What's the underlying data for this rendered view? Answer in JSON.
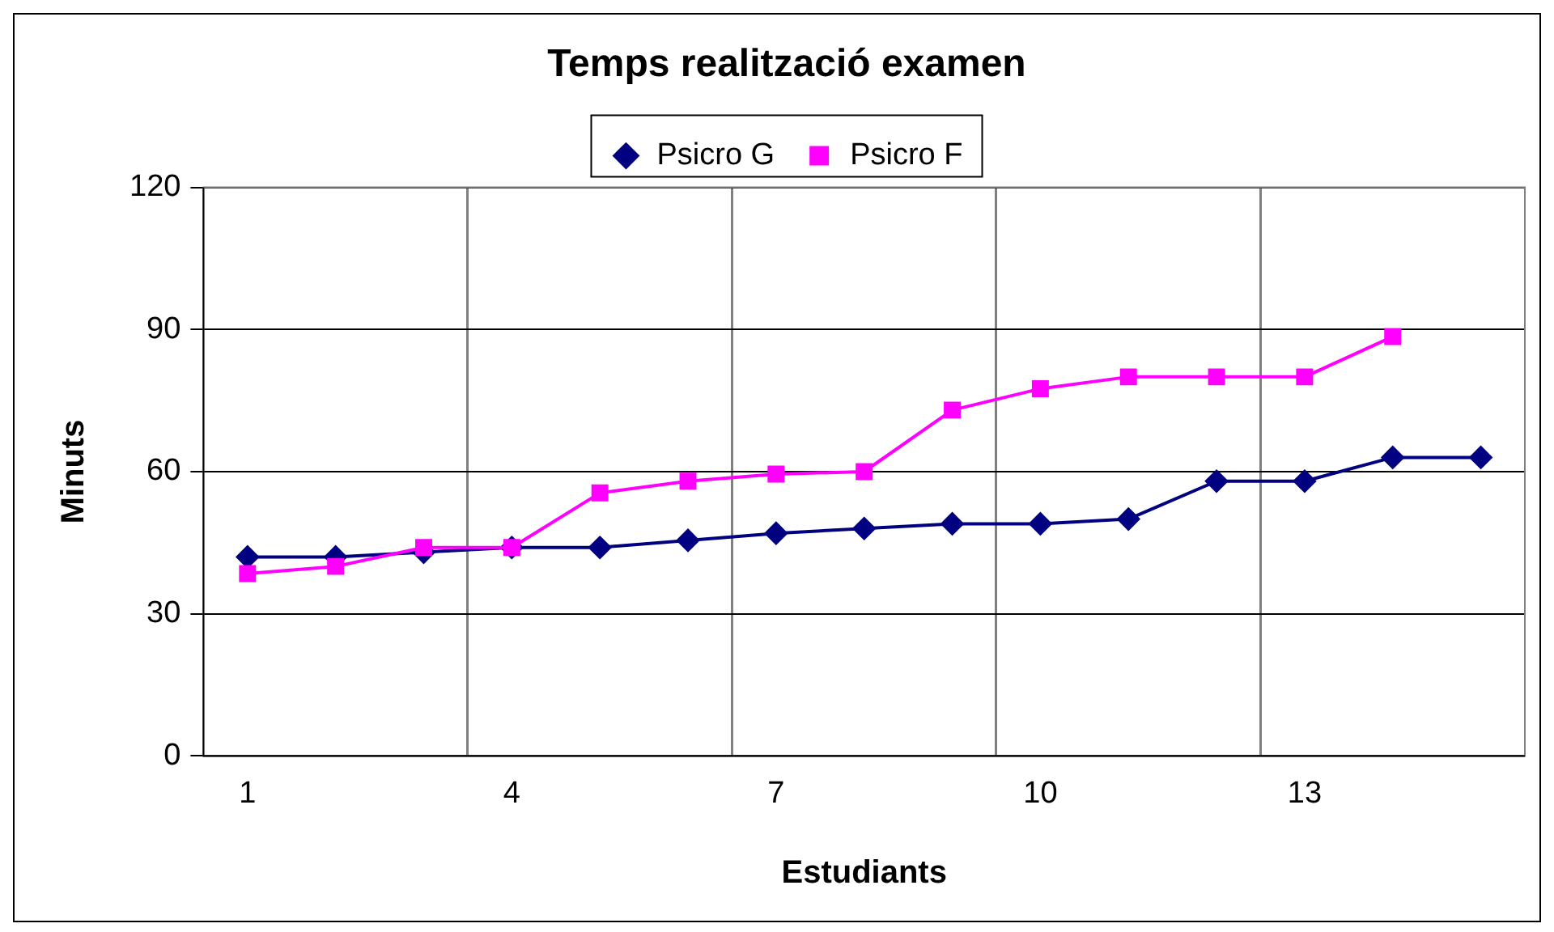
{
  "chart_data": {
    "type": "line",
    "title": "Temps realització examen",
    "xlabel": "Estudiants",
    "ylabel": "Minuts",
    "categories": [
      "1",
      null,
      null,
      "4",
      null,
      null,
      "7",
      null,
      null,
      "10",
      null,
      null,
      "13",
      null,
      null
    ],
    "series": [
      {
        "name": "Psicro G",
        "color": "#000080",
        "marker": "diamond",
        "values": [
          42,
          42,
          43,
          44,
          44,
          45.5,
          47,
          48,
          49,
          49,
          50,
          58,
          58,
          63,
          63
        ]
      },
      {
        "name": "Psicro F",
        "color": "#ff00ff",
        "marker": "square",
        "values": [
          38.5,
          40,
          44,
          44,
          55.5,
          58,
          59.5,
          60,
          73,
          77.5,
          80,
          80,
          80,
          88.5,
          null
        ]
      }
    ],
    "ylim": [
      0,
      120
    ],
    "yticks": [
      0,
      30,
      60,
      90,
      120
    ],
    "grid": true,
    "legend": "top",
    "line_style": "solid"
  }
}
